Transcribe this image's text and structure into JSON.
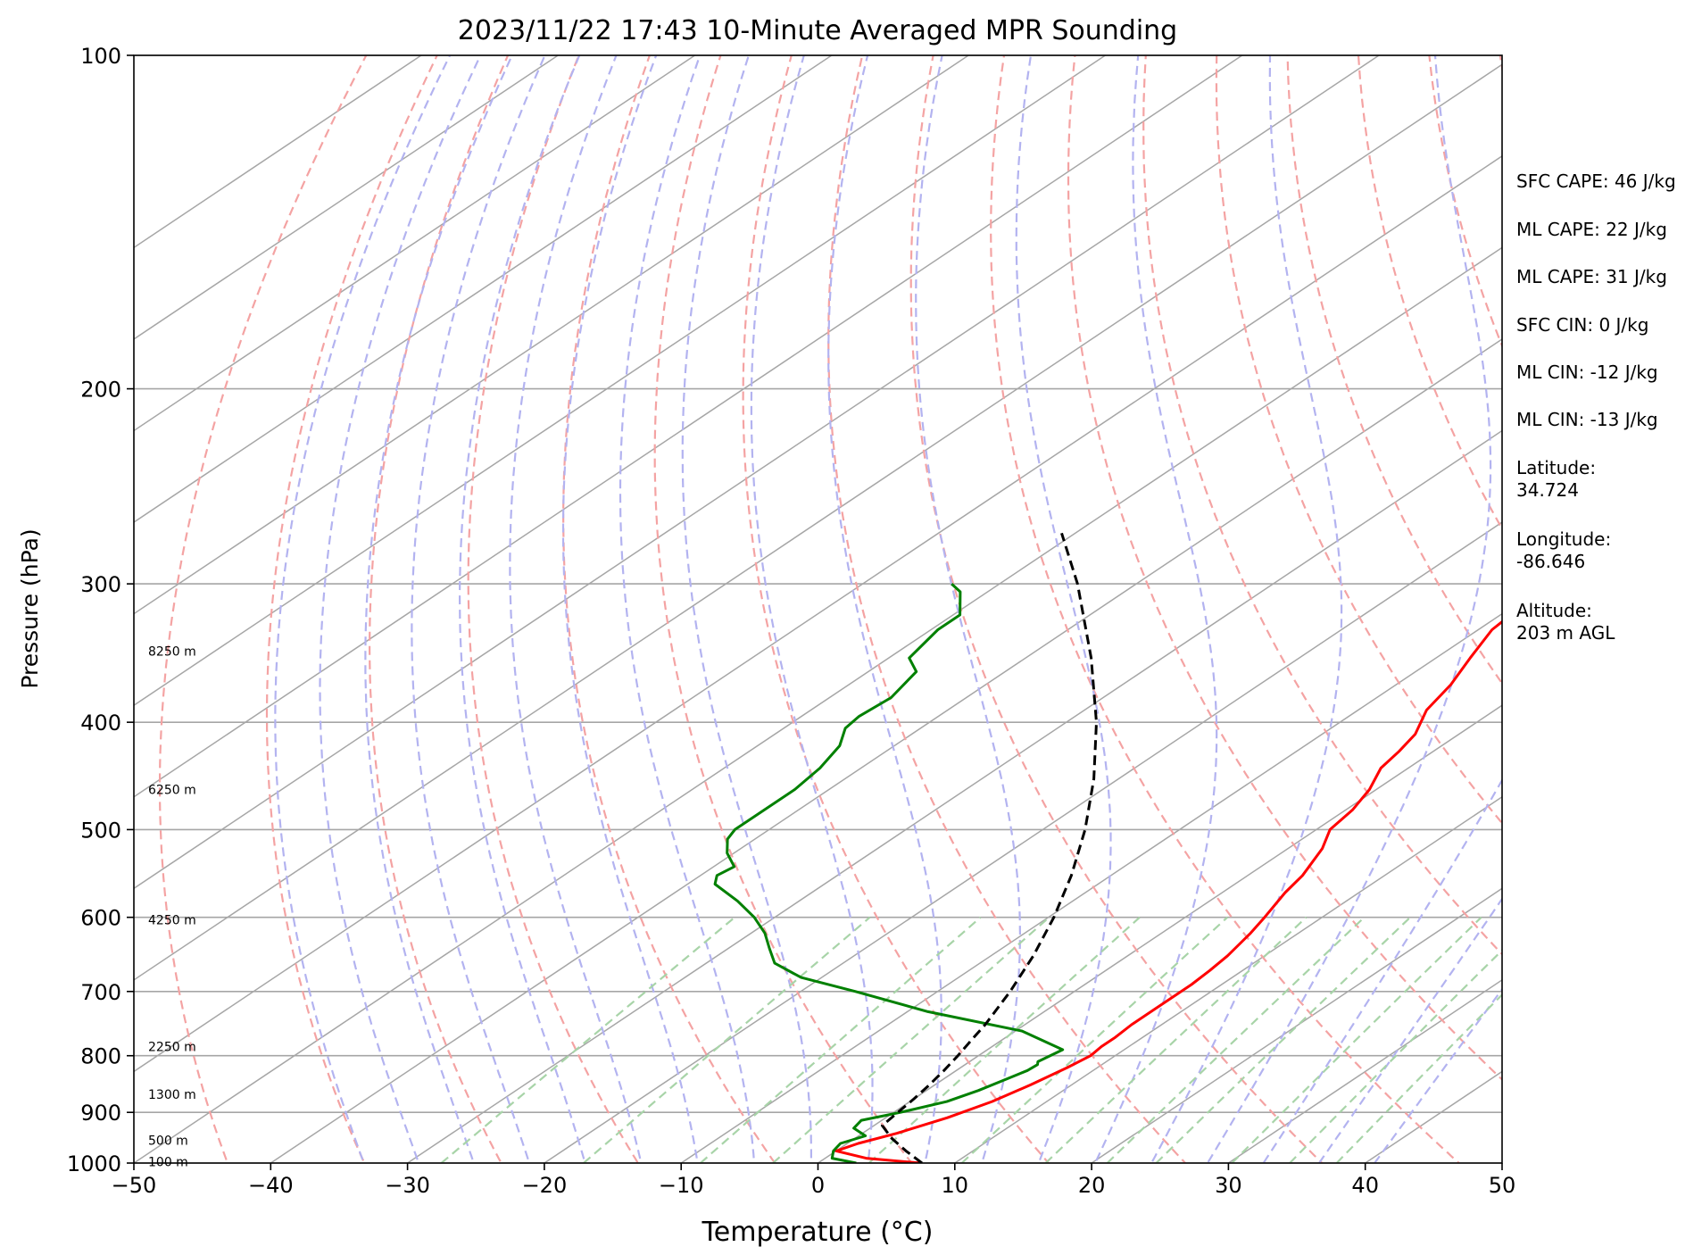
{
  "chart_data": {
    "type": "line",
    "title": "2023/11/22 17:43 10-Minute Averaged MPR Sounding",
    "xlabel": "Temperature (°C)",
    "ylabel": "Pressure (hPa)",
    "xlim": [
      -50,
      50
    ],
    "ylim": [
      1000,
      100
    ],
    "y_scale": "log",
    "skew": "skew-T",
    "x_ticks": [
      -50,
      -40,
      -30,
      -20,
      -10,
      0,
      10,
      20,
      30,
      40,
      50
    ],
    "x_tick_labels": [
      "−50",
      "−40",
      "−30",
      "−20",
      "−10",
      "0",
      "10",
      "20",
      "30",
      "40",
      "50"
    ],
    "y_ticks": [
      1000,
      900,
      800,
      700,
      600,
      500,
      400,
      300,
      200,
      100
    ],
    "y_tick_labels": [
      "1000",
      "900",
      "800",
      "700",
      "600",
      "500",
      "400",
      "300",
      "200",
      "100"
    ],
    "grid": true,
    "background_lines": {
      "isotherms": {
        "color": "#a6a6a6",
        "style": "solid"
      },
      "dry_adiabats": {
        "color": "#f4a3a3",
        "style": "dashed"
      },
      "moist_adiabats": {
        "color": "#b3b3f0",
        "style": "dashed"
      },
      "mixing_ratio": {
        "color": "#a8d4a8",
        "style": "dashed"
      }
    },
    "series": [
      {
        "color": "#ff0000",
        "p": [
          1000,
          990,
          975,
          960,
          940,
          910,
          880,
          850,
          820,
          800,
          785,
          770,
          750,
          730,
          710,
          690,
          670,
          650,
          620,
          600,
          570,
          550,
          520,
          500,
          480,
          460,
          440,
          425,
          410,
          390,
          370,
          350,
          330,
          310,
          295,
          280,
          272
        ],
        "t": [
          7.5,
          3,
          0,
          0.8,
          2.5,
          4.5,
          6,
          7,
          7.8,
          8.2,
          8.0,
          8.0,
          7.8,
          7.8,
          7.8,
          7.8,
          7.6,
          7.3,
          6.5,
          5.8,
          4.6,
          4.0,
          2.5,
          1.0,
          0.5,
          -0.5,
          -2.0,
          -2.5,
          -3.2,
          -5.0,
          -6.0,
          -7.5,
          -9.0,
          -9.5,
          -10.5,
          -11.8,
          -12.8
        ]
      },
      {
        "color": "#008000",
        "p": [
          1000,
          990,
          975,
          960,
          945,
          930,
          915,
          900,
          880,
          860,
          840,
          825,
          815,
          810,
          790,
          760,
          730,
          700,
          680,
          660,
          640,
          620,
          600,
          580,
          560,
          550,
          540,
          525,
          510,
          500,
          480,
          460,
          440,
          420,
          405,
          395,
          380,
          360,
          350,
          330,
          320,
          305,
          300
        ],
        "t": [
          2.8,
          0.5,
          -0.2,
          -0.5,
          0.5,
          -1.2,
          -1.5,
          0.5,
          2.7,
          3.8,
          4.6,
          5.2,
          5.3,
          5.0,
          5.5,
          0.5,
          -8.5,
          -16.0,
          -21.5,
          -25.0,
          -27.0,
          -29.0,
          -31.5,
          -34.5,
          -38.0,
          -38.8,
          -38.5,
          -40.5,
          -42.0,
          -42.5,
          -42.5,
          -42.5,
          -43.0,
          -44.0,
          -45.5,
          -45.8,
          -45.5,
          -46.5,
          -48.5,
          -49.5,
          -49.5,
          -52.0,
          -53.5
        ]
      },
      {
        "color": "#000000",
        "style": "dashed",
        "p": [
          1000,
          975,
          950,
          925,
          900,
          875,
          850,
          825,
          800,
          775,
          750,
          700,
          650,
          600,
          550,
          500,
          450,
          400,
          350,
          300,
          270
        ],
        "t": [
          7.6,
          5.1,
          2.7,
          0.6,
          0.3,
          0.0,
          -0.4,
          -0.9,
          -1.5,
          -2.2,
          -2.9,
          -4.7,
          -6.9,
          -9.6,
          -12.9,
          -16.9,
          -21.8,
          -27.8,
          -35.2,
          -44.3,
          -51.0
        ]
      }
    ],
    "height_labels": [
      {
        "p": 997,
        "label": "100 m"
      },
      {
        "p": 954,
        "label": "500 m"
      },
      {
        "p": 867,
        "label": "1300 m"
      },
      {
        "p": 785,
        "label": "2250 m"
      },
      {
        "p": 603,
        "label": "4250 m"
      },
      {
        "p": 460,
        "label": "6250 m"
      },
      {
        "p": 345,
        "label": "8250 m"
      }
    ]
  },
  "side_panel": {
    "sfc_cape": "SFC CAPE: 46 J/kg",
    "ml_cape_1": "ML CAPE: 22 J/kg",
    "ml_cape_2": "ML CAPE: 31 J/kg",
    "sfc_cin": "SFC CIN: 0 J/kg",
    "ml_cin_1": "ML CIN: -12 J/kg",
    "ml_cin_2": "ML CIN: -13 J/kg",
    "latitude_label": "Latitude:",
    "latitude_value": "34.724",
    "longitude_label": "Longitude:",
    "longitude_value": "-86.646",
    "altitude_label": "Altitude:",
    "altitude_value": "203 m AGL"
  }
}
